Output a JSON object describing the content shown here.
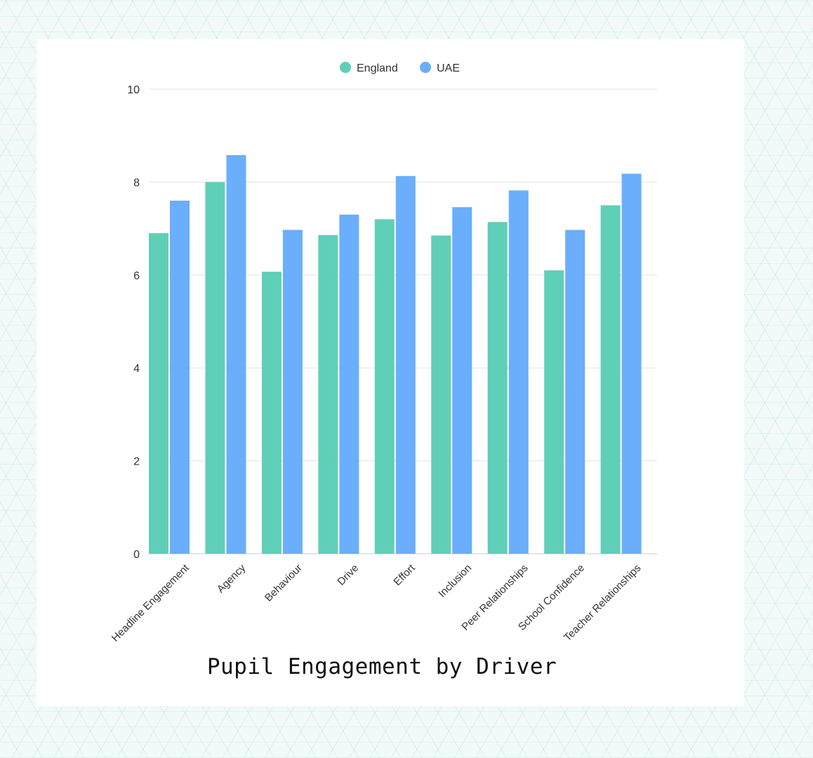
{
  "chart_data": {
    "type": "bar",
    "title": "Pupil Engagement by Driver",
    "xlabel": "",
    "ylabel": "",
    "ylim": [
      0,
      10
    ],
    "yticks": [
      0,
      2,
      4,
      6,
      8,
      10
    ],
    "grid": true,
    "legend_position": "top-center",
    "categories": [
      "Headline Engagement",
      "Agency",
      "Behaviour",
      "Drive",
      "Effort",
      "Inclusion",
      "Peer Relationships",
      "School Confidence",
      "Teacher Relationships"
    ],
    "series": [
      {
        "name": "England",
        "color": "#5fcfb8",
        "values": [
          6.9,
          8.0,
          6.07,
          6.86,
          7.2,
          6.85,
          7.14,
          6.1,
          7.5
        ]
      },
      {
        "name": "UAE",
        "color": "#6aaefc",
        "values": [
          7.6,
          8.58,
          6.97,
          7.3,
          8.13,
          7.46,
          7.82,
          6.97,
          8.18
        ]
      }
    ]
  }
}
